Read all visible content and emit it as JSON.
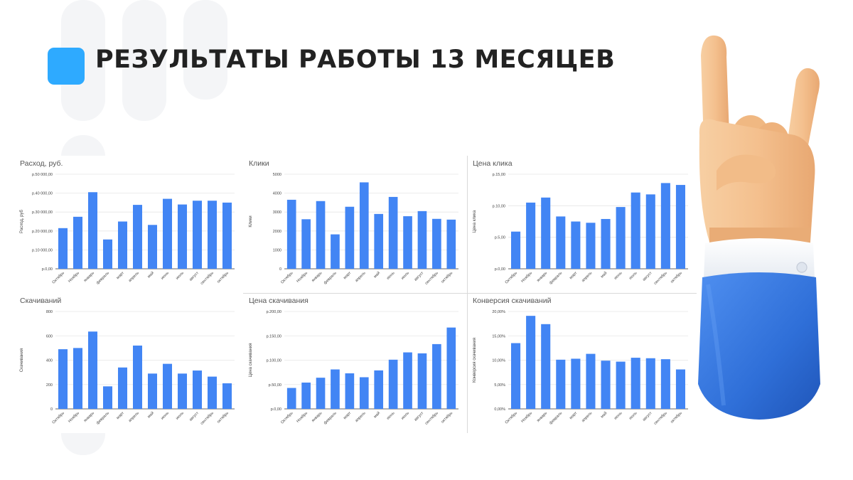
{
  "header": {
    "title": "РЕЗУЛЬТАТЫ РАБОТЫ 13 МЕСЯЦЕВ"
  },
  "colors": {
    "accent": "#2eaaff",
    "bar": "#4285f4",
    "title": "#222222"
  },
  "illustration": {
    "icon": "rock-hand-gesture-icon"
  },
  "chart_data": [
    {
      "id": "spend",
      "type": "bar",
      "title": "Расход, руб.",
      "ylabel": "Расход, руб",
      "xlabel": "",
      "ylim": [
        0,
        50000
      ],
      "yticks": [
        0,
        10000,
        20000,
        30000,
        40000,
        50000
      ],
      "ytick_labels": [
        "р.0,00",
        "р.10 000,00",
        "р.20 000,00",
        "р.30 000,00",
        "р.40 000,00",
        "р.50 000,00"
      ],
      "categories": [
        "Октябрь",
        "Ноябрь",
        "январь",
        "февраль",
        "март",
        "апрель",
        "май",
        "июнь",
        "июль",
        "август",
        "сентябрь",
        "октябрь"
      ],
      "values": [
        21500,
        27500,
        40500,
        15500,
        25000,
        33800,
        23200,
        37000,
        34000,
        36000,
        36000,
        35000
      ],
      "grid": true
    },
    {
      "id": "clicks",
      "type": "bar",
      "title": "Клики",
      "ylabel": "Клики",
      "xlabel": "",
      "ylim": [
        0,
        5000
      ],
      "yticks": [
        0,
        1000,
        2000,
        3000,
        4000,
        5000
      ],
      "ytick_labels": [
        "0",
        "1000",
        "2000",
        "3000",
        "4000",
        "5000"
      ],
      "categories": [
        "Октябрь",
        "Ноябрь",
        "январь",
        "февраль",
        "март",
        "апрель",
        "май",
        "июнь",
        "июль",
        "август",
        "сентябрь",
        "октябрь"
      ],
      "values": [
        3650,
        2620,
        3580,
        1820,
        3280,
        4570,
        2900,
        3800,
        2780,
        3050,
        2640,
        2600
      ],
      "grid": true
    },
    {
      "id": "cpc",
      "type": "bar",
      "title": "Цена клика",
      "ylabel": "Цена клика",
      "xlabel": "",
      "ylim": [
        0,
        15
      ],
      "yticks": [
        0,
        5,
        10,
        15
      ],
      "ytick_labels": [
        "р.0,00",
        "р.5,00",
        "р.10,00",
        "р.15,00"
      ],
      "categories": [
        "Октябрь",
        "Ноябрь",
        "январь",
        "февраль",
        "март",
        "апрель",
        "май",
        "июнь",
        "июль",
        "август",
        "сентябрь",
        "октябрь"
      ],
      "values": [
        5.9,
        10.5,
        11.3,
        8.3,
        7.5,
        7.3,
        7.9,
        9.8,
        12.1,
        11.8,
        13.6,
        13.3
      ],
      "grid": true
    },
    {
      "id": "downloads",
      "type": "bar",
      "title": "Скачиваний",
      "ylabel": "Скачивания",
      "xlabel": "",
      "ylim": [
        0,
        800
      ],
      "yticks": [
        0,
        200,
        400,
        600,
        800
      ],
      "ytick_labels": [
        "0",
        "200",
        "400",
        "600",
        "800"
      ],
      "categories": [
        "Октябрь",
        "Ноябрь",
        "январь",
        "февраль",
        "март",
        "апрель",
        "май",
        "июнь",
        "июль",
        "август",
        "сентябрь",
        "октябрь"
      ],
      "values": [
        490,
        500,
        635,
        185,
        340,
        520,
        290,
        370,
        290,
        315,
        265,
        210
      ],
      "grid": true
    },
    {
      "id": "cpd",
      "type": "bar",
      "title": "Цена скачивания",
      "ylabel": "Цена скачивания",
      "xlabel": "",
      "ylim": [
        0,
        200
      ],
      "yticks": [
        0,
        50,
        100,
        150,
        200
      ],
      "ytick_labels": [
        "р.0,00",
        "р.50,00",
        "р.100,00",
        "р.150,00",
        "р.200,00"
      ],
      "categories": [
        "Октябрь",
        "Ноябрь",
        "январь",
        "февраль",
        "март",
        "апрель",
        "май",
        "июнь",
        "июль",
        "август",
        "сентябрь",
        "октябрь"
      ],
      "values": [
        43,
        54,
        64,
        81,
        73,
        65,
        79,
        101,
        116,
        114,
        133,
        167
      ],
      "grid": true
    },
    {
      "id": "conversion",
      "type": "bar",
      "title": "Конверсия скачиваний",
      "ylabel": "Конверсия скачивания",
      "xlabel": "",
      "ylim": [
        0,
        20
      ],
      "yticks": [
        0,
        5,
        10,
        15,
        20
      ],
      "ytick_labels": [
        "0,00%",
        "5,00%",
        "10,00%",
        "15,00%",
        "20,00%"
      ],
      "categories": [
        "Октябрь",
        "Ноябрь",
        "январь",
        "февраль",
        "март",
        "апрель",
        "май",
        "июнь",
        "июль",
        "август",
        "сентябрь",
        "октябрь"
      ],
      "values": [
        13.5,
        19.1,
        17.4,
        10.1,
        10.3,
        11.3,
        9.9,
        9.7,
        10.5,
        10.4,
        10.2,
        8.1
      ],
      "grid": true
    }
  ]
}
